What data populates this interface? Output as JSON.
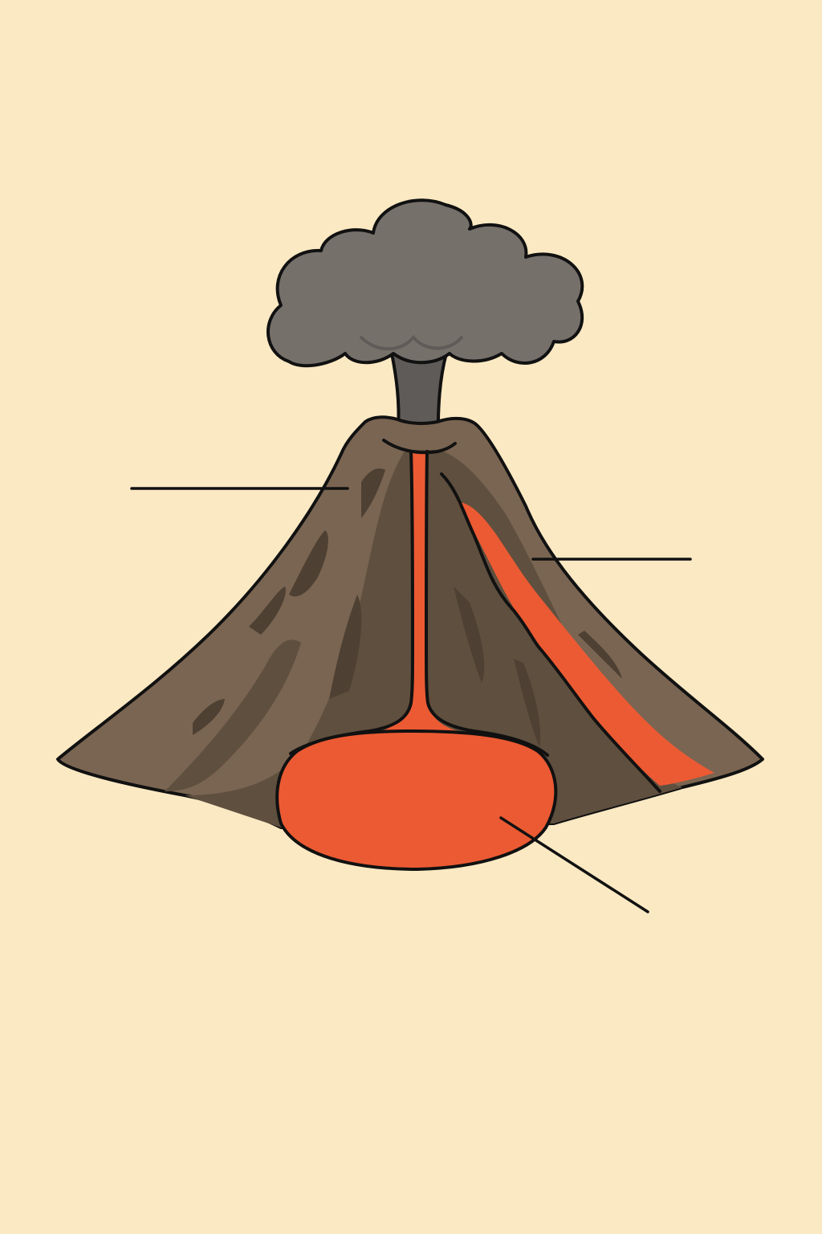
{
  "diagram": {
    "colors": {
      "background": "#fbe9c3",
      "outline": "#111111",
      "slope_light": "#7a6552",
      "slope_dark": "#5f4f3e",
      "slope_shadow": "#4e4032",
      "lava": "#ec5a33",
      "ash_cloud": "#76706b",
      "ash_column": "#5f5b58"
    },
    "parts": [
      {
        "id": "ash-cloud",
        "label": ""
      },
      {
        "id": "vent",
        "label": ""
      },
      {
        "id": "slope",
        "label": ""
      },
      {
        "id": "lava-flow",
        "label": ""
      },
      {
        "id": "magma-chamber",
        "label": ""
      }
    ],
    "leader_lines": [
      {
        "id": "left-slope-label-line",
        "label": ""
      },
      {
        "id": "right-lava-label-line",
        "label": ""
      },
      {
        "id": "magma-chamber-label-line",
        "label": ""
      }
    ]
  }
}
